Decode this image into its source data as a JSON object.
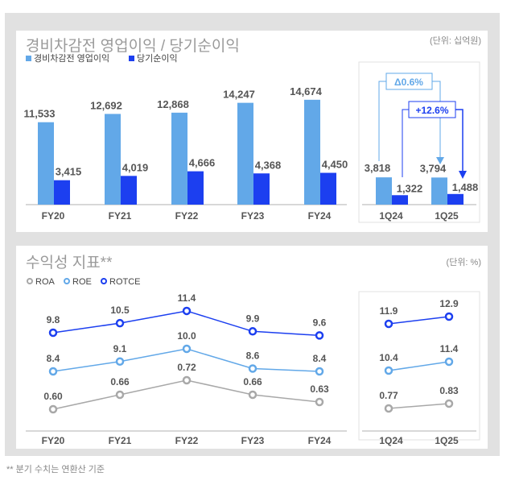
{
  "chart_data": [
    {
      "type": "bar",
      "title": "경비차감전 영업이익 / 당기순이익",
      "unit": "(단위: 십억원)",
      "categories": [
        "FY20",
        "FY21",
        "FY22",
        "FY23",
        "FY24"
      ],
      "series": [
        {
          "name": "경비차감전 영업이익",
          "color": "#62a8e8",
          "values": [
            11533,
            12692,
            12868,
            14247,
            14674
          ]
        },
        {
          "name": "당기순이익",
          "color": "#1c3ff0",
          "values": [
            3415,
            4019,
            4666,
            4368,
            4450
          ]
        }
      ],
      "quarterly": {
        "categories": [
          "1Q24",
          "1Q25"
        ],
        "values": [
          [
            3818,
            3794
          ],
          [
            1322,
            1488
          ]
        ],
        "annotations": [
          {
            "text": "Δ0.6%",
            "color": "#62a8e8"
          },
          {
            "text": "+12.6%",
            "color": "#1c3ff0"
          }
        ]
      }
    },
    {
      "type": "line",
      "title": "수익성 지표**",
      "unit": "(단위: %)",
      "categories": [
        "FY20",
        "FY21",
        "FY22",
        "FY23",
        "FY24"
      ],
      "series": [
        {
          "name": "ROA",
          "color": "#a8a8a8",
          "values": [
            0.6,
            0.66,
            0.72,
            0.66,
            0.63
          ],
          "quarterly": [
            0.77,
            0.83
          ]
        },
        {
          "name": "ROE",
          "color": "#62a8e8",
          "values": [
            8.4,
            9.1,
            10.0,
            8.6,
            8.4
          ],
          "quarterly": [
            10.4,
            11.4
          ]
        },
        {
          "name": "ROTCE",
          "color": "#1c3ff0",
          "values": [
            9.8,
            10.5,
            11.4,
            9.9,
            9.6
          ],
          "quarterly": [
            11.9,
            12.9
          ]
        }
      ],
      "quarterly_categories": [
        "1Q24",
        "1Q25"
      ]
    }
  ],
  "footnote": "** 분기 수치는 연환산 기준"
}
